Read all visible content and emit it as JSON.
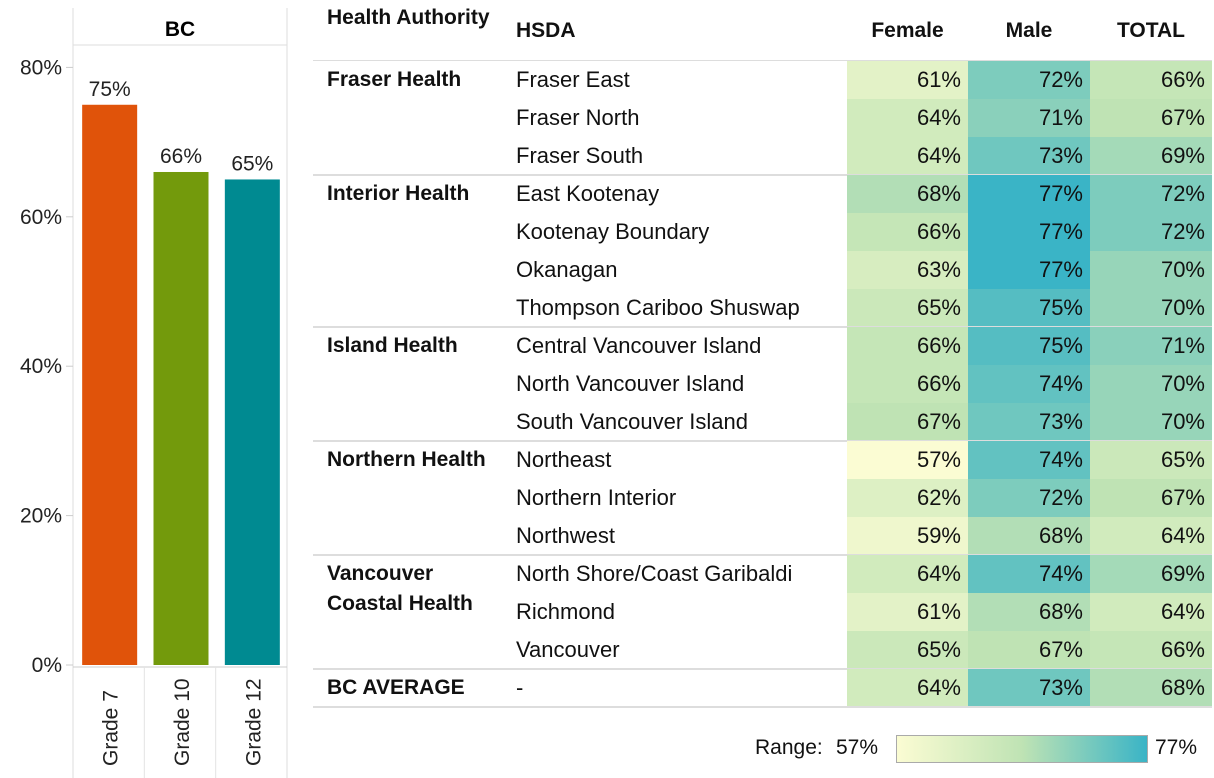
{
  "chart_data": [
    {
      "type": "bar",
      "title": "BC",
      "categories": [
        "Grade 7",
        "Grade 10",
        "Grade 12"
      ],
      "values": [
        75,
        66,
        65
      ],
      "value_labels": [
        "75%",
        "66%",
        "65%"
      ],
      "colors": [
        "#e0530a",
        "#739a0c",
        "#008a91"
      ],
      "ylim": [
        0,
        83
      ],
      "yticks": [
        {
          "value": 0,
          "label": "0%"
        },
        {
          "value": 20,
          "label": "20%"
        },
        {
          "value": 40,
          "label": "40%"
        },
        {
          "value": 60,
          "label": "60%"
        },
        {
          "value": 80,
          "label": "80%"
        }
      ]
    },
    {
      "type": "heatmap",
      "columns": [
        "Health Authority",
        "HSDA",
        "Female",
        "Male",
        "TOTAL"
      ],
      "groups": [
        {
          "name": "Fraser Health",
          "rows": [
            {
              "hsda": "Fraser East",
              "values": [
                61,
                72,
                66
              ],
              "value_labels": [
                "61%",
                "72%",
                "66%"
              ]
            },
            {
              "hsda": "Fraser North",
              "values": [
                64,
                71,
                67
              ],
              "value_labels": [
                "64%",
                "71%",
                "67%"
              ]
            },
            {
              "hsda": "Fraser South",
              "values": [
                64,
                73,
                69
              ],
              "value_labels": [
                "64%",
                "73%",
                "69%"
              ]
            }
          ]
        },
        {
          "name": "Interior Health",
          "rows": [
            {
              "hsda": "East Kootenay",
              "values": [
                68,
                77,
                72
              ],
              "value_labels": [
                "68%",
                "77%",
                "72%"
              ]
            },
            {
              "hsda": "Kootenay Boundary",
              "values": [
                66,
                77,
                72
              ],
              "value_labels": [
                "66%",
                "77%",
                "72%"
              ]
            },
            {
              "hsda": "Okanagan",
              "values": [
                63,
                77,
                70
              ],
              "value_labels": [
                "63%",
                "77%",
                "70%"
              ]
            },
            {
              "hsda": "Thompson Cariboo Shuswap",
              "values": [
                65,
                75,
                70
              ],
              "value_labels": [
                "65%",
                "75%",
                "70%"
              ]
            }
          ]
        },
        {
          "name": "Island Health",
          "rows": [
            {
              "hsda": "Central Vancouver Island",
              "values": [
                66,
                75,
                71
              ],
              "value_labels": [
                "66%",
                "75%",
                "71%"
              ]
            },
            {
              "hsda": "North Vancouver Island",
              "values": [
                66,
                74,
                70
              ],
              "value_labels": [
                "66%",
                "74%",
                "70%"
              ]
            },
            {
              "hsda": "South Vancouver Island",
              "values": [
                67,
                73,
                70
              ],
              "value_labels": [
                "67%",
                "73%",
                "70%"
              ]
            }
          ]
        },
        {
          "name": "Northern Health",
          "rows": [
            {
              "hsda": "Northeast",
              "values": [
                57,
                74,
                65
              ],
              "value_labels": [
                "57%",
                "74%",
                "65%"
              ]
            },
            {
              "hsda": "Northern Interior",
              "values": [
                62,
                72,
                67
              ],
              "value_labels": [
                "62%",
                "72%",
                "67%"
              ]
            },
            {
              "hsda": "Northwest",
              "values": [
                59,
                68,
                64
              ],
              "value_labels": [
                "59%",
                "68%",
                "64%"
              ]
            }
          ]
        },
        {
          "name": "Vancouver Coastal Health",
          "rows": [
            {
              "hsda": "North Shore/Coast Garibaldi",
              "values": [
                64,
                74,
                69
              ],
              "value_labels": [
                "64%",
                "74%",
                "69%"
              ]
            },
            {
              "hsda": "Richmond",
              "values": [
                61,
                68,
                64
              ],
              "value_labels": [
                "61%",
                "68%",
                "64%"
              ]
            },
            {
              "hsda": "Vancouver",
              "values": [
                65,
                67,
                66
              ],
              "value_labels": [
                "65%",
                "67%",
                "66%"
              ]
            }
          ]
        },
        {
          "name": "BC AVERAGE",
          "rows": [
            {
              "hsda": "-",
              "values": [
                64,
                73,
                68
              ],
              "value_labels": [
                "64%",
                "73%",
                "68%"
              ]
            }
          ]
        }
      ],
      "colorbar": {
        "label": "Range:",
        "colors": [
          "#fbfcd3",
          "#bfe3b4",
          "#3ab4c6"
        ],
        "ticks": [
          {
            "value": 57,
            "label": "57%"
          },
          {
            "value": 77,
            "label": "77%"
          }
        ]
      }
    }
  ]
}
